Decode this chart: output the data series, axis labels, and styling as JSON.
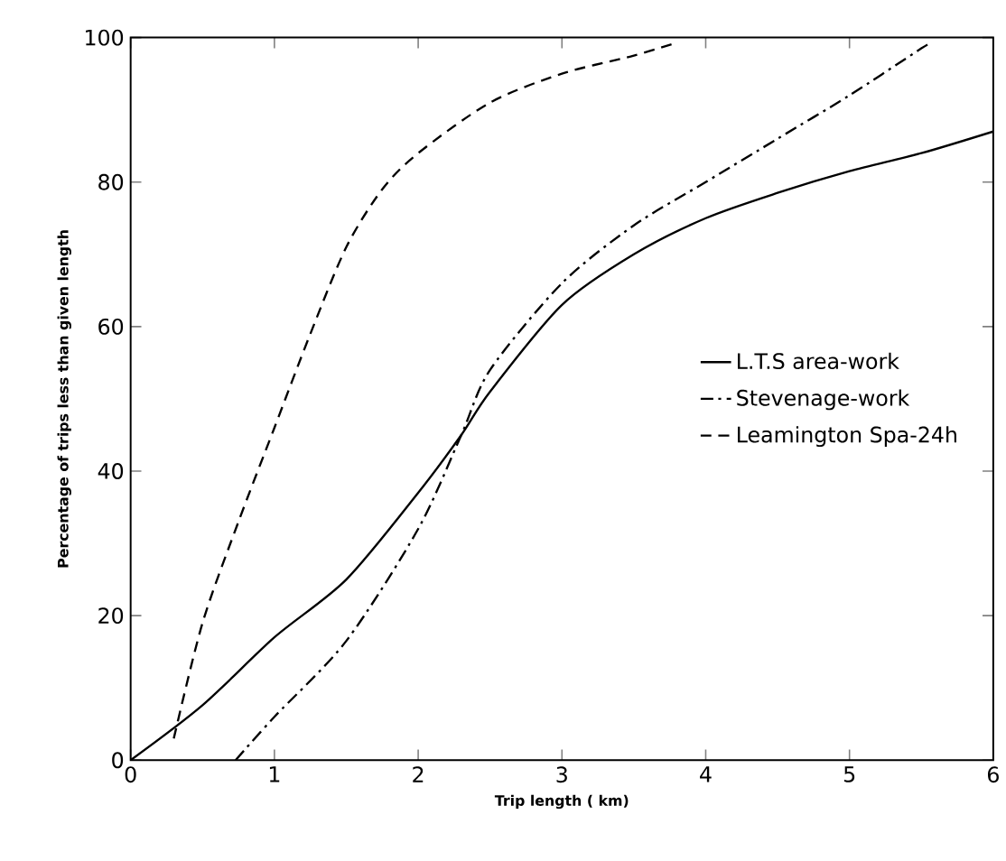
{
  "chart_data": {
    "type": "line",
    "xlabel": "Trip length ( km)",
    "ylabel": "Percentage of trips less than given length",
    "xlim": [
      0,
      6
    ],
    "ylim": [
      0,
      100
    ],
    "xticks": [
      0,
      1,
      2,
      3,
      4,
      5,
      6
    ],
    "yticks": [
      0,
      20,
      40,
      60,
      80,
      100
    ],
    "grid": false,
    "legend": "right",
    "marker": "none",
    "series": [
      {
        "name": "L.T.S area-work",
        "color": "#000000",
        "line_style": "solid",
        "x": [
          0,
          0.5,
          1,
          1.5,
          2,
          2.3,
          2.5,
          3,
          3.5,
          4,
          4.5,
          5,
          5.5,
          6
        ],
        "values": [
          0,
          7.6,
          17,
          25,
          37,
          45,
          51,
          63,
          70,
          75,
          78.5,
          81.5,
          84,
          87
        ]
      },
      {
        "name": "Stevenage-work",
        "color": "#000000",
        "line_style": "dashdot",
        "x": [
          0.73,
          1,
          1.5,
          2,
          2.3,
          2.5,
          3,
          3.5,
          4,
          4.5,
          5,
          5.5,
          5.55
        ],
        "values": [
          0,
          6,
          16.5,
          32,
          45,
          54,
          66,
          74,
          80,
          86,
          92,
          98.5,
          99
        ]
      },
      {
        "name": "Leamington Spa-24h",
        "color": "#000000",
        "line_style": "dashed",
        "x": [
          0.3,
          0.5,
          0.75,
          1,
          1.25,
          1.5,
          1.75,
          2,
          2.5,
          3,
          3.5,
          3.8
        ],
        "values": [
          3,
          19,
          33,
          46,
          59,
          71,
          79,
          84,
          91,
          95,
          97.5,
          99.3
        ]
      }
    ]
  }
}
